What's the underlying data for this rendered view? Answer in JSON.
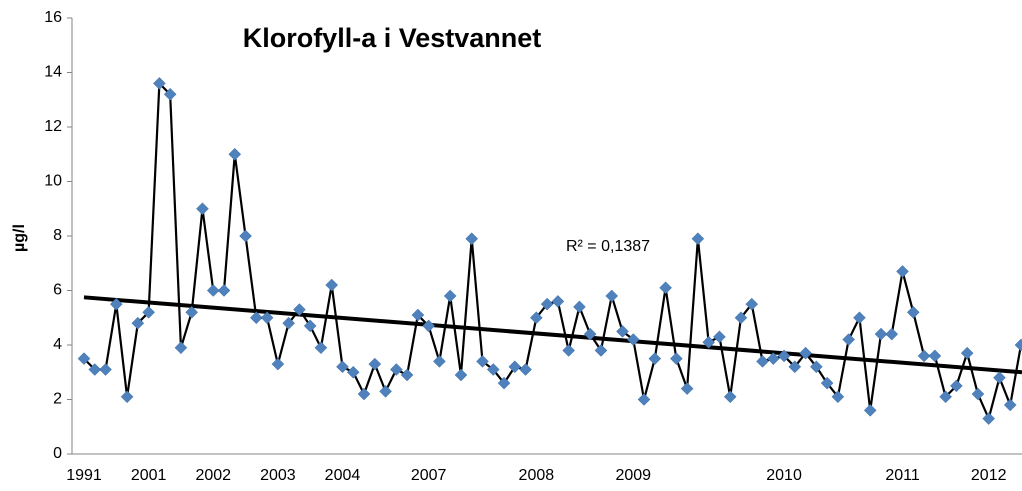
{
  "chart_data": {
    "type": "line",
    "title": "Klorofyll-a i Vestvannet",
    "y_label": "µg/l",
    "annotation": "R² = 0,1387",
    "categories": [
      "1991",
      null,
      null,
      null,
      null,
      null,
      "2001",
      null,
      null,
      null,
      null,
      null,
      "2002",
      null,
      null,
      null,
      null,
      null,
      "2003",
      null,
      null,
      null,
      null,
      null,
      "2004",
      null,
      null,
      null,
      null,
      null,
      null,
      null,
      "2007",
      null,
      null,
      null,
      null,
      null,
      null,
      null,
      null,
      null,
      "2008",
      null,
      null,
      null,
      null,
      null,
      null,
      null,
      null,
      "2009",
      null,
      null,
      null,
      null,
      null,
      null,
      null,
      null,
      null,
      null,
      null,
      null,
      null,
      "2010",
      null,
      null,
      null,
      null,
      null,
      null,
      null,
      null,
      null,
      null,
      "2011",
      null,
      null,
      null,
      null,
      null,
      null,
      null,
      "2012",
      null,
      null,
      null
    ],
    "series": [
      {
        "color": "#4f81bd",
        "line_color": "#000000",
        "values": [
          3.5,
          3.1,
          3.1,
          5.5,
          2.1,
          4.8,
          5.2,
          13.6,
          13.2,
          3.9,
          5.2,
          9.0,
          6.0,
          6.0,
          11.0,
          8.0,
          5.0,
          5.0,
          3.3,
          4.8,
          5.3,
          4.7,
          3.9,
          6.2,
          3.2,
          3.0,
          2.2,
          3.3,
          2.3,
          3.1,
          2.9,
          5.1,
          4.7,
          3.4,
          5.8,
          2.9,
          7.9,
          3.4,
          3.1,
          2.6,
          3.2,
          3.1,
          5.0,
          5.5,
          5.6,
          3.8,
          5.4,
          4.4,
          3.8,
          5.8,
          4.5,
          4.2,
          2.0,
          3.5,
          6.1,
          3.5,
          2.4,
          7.9,
          4.1,
          4.3,
          2.1,
          5.0,
          5.5,
          3.4,
          3.5,
          3.6,
          3.2,
          3.7,
          3.2,
          2.6,
          2.1,
          4.2,
          5.0,
          1.6,
          4.4,
          4.4,
          6.7,
          5.2,
          3.6,
          3.6,
          2.1,
          2.5,
          3.7,
          2.2,
          1.3,
          2.8,
          1.8,
          4.0
        ]
      }
    ],
    "trendline": {
      "start": 5.75,
      "end": 3.0,
      "color": "#000000"
    },
    "ylim": [
      0,
      16
    ],
    "yticks": [
      0,
      2,
      4,
      6,
      8,
      10,
      12,
      14,
      16
    ]
  }
}
